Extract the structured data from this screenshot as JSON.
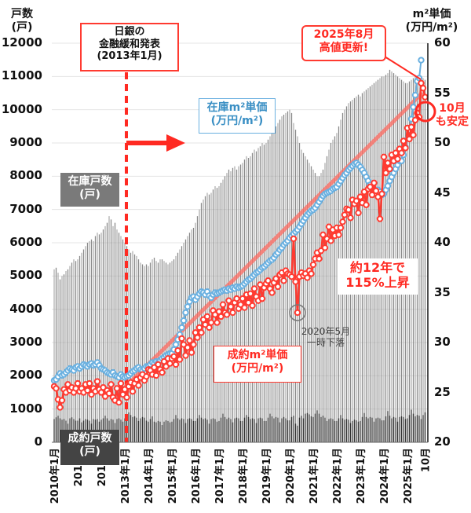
{
  "chart_data": {
    "type": "bar+line",
    "left_axis": {
      "title": "戸数\n(戸)",
      "ylim": [
        0,
        12000
      ],
      "ticks": [
        0,
        1000,
        2000,
        3000,
        4000,
        5000,
        6000,
        7000,
        8000,
        9000,
        10000,
        11000,
        12000
      ]
    },
    "right_axis": {
      "title": "m²単価\n(万円/m²)",
      "ylim": [
        20,
        60
      ],
      "ticks": [
        20,
        25,
        30,
        35,
        40,
        45,
        50,
        55,
        60
      ]
    },
    "x_tick_labels": [
      "2010年1月",
      "2011年",
      "2012年",
      "2013年1月",
      "2014年1月",
      "2015年1月",
      "2016年1月",
      "2017年1月",
      "2018年1月",
      "2019年1月",
      "2020年1月",
      "2021年1月",
      "2022年1月",
      "2023年1月",
      "2024年1月",
      "2025年1月",
      "10月"
    ],
    "x_range": [
      "2010-01",
      "2025-10"
    ],
    "grid": "horizontal",
    "series": [
      {
        "name": "在庫戸数\n(戸)",
        "type": "bar",
        "axis": "left",
        "color": "#9a9a9a",
        "values": [
          5200,
          5250,
          5100,
          4900,
          5000,
          5050,
          5150,
          5200,
          5300,
          5400,
          5500,
          5450,
          5500,
          5600,
          5700,
          5800,
          5900,
          6000,
          6050,
          6100,
          6050,
          6200,
          6300,
          6250,
          6300,
          6400,
          6500,
          6600,
          6800,
          6700,
          6500,
          6600,
          6400,
          6300,
          6200,
          6100,
          6000,
          5900,
          5800,
          5700,
          5750,
          5650,
          5600,
          5500,
          5400,
          5350,
          5300,
          5350,
          5300,
          5400,
          5500,
          5550,
          5450,
          5400,
          5500,
          5500,
          5450,
          5400,
          5350,
          5400,
          5450,
          5500,
          5600,
          5700,
          5800,
          5900,
          6000,
          6100,
          6200,
          6300,
          6400,
          6450,
          6600,
          6800,
          7000,
          7200,
          7300,
          7400,
          7500,
          7450,
          7500,
          7600,
          7700,
          7650,
          7700,
          7800,
          7900,
          8000,
          8100,
          8200,
          8150,
          8250,
          8300,
          8200,
          8300,
          8350,
          8400,
          8500,
          8600,
          8550,
          8600,
          8700,
          8800,
          8750,
          8850,
          8900,
          9000,
          8950,
          9000,
          9100,
          9200,
          9300,
          9400,
          9500,
          9600,
          9700,
          9800,
          9850,
          9900,
          9950,
          10000,
          9900,
          9600,
          9400,
          9200,
          9000,
          8800,
          8700,
          8600,
          8500,
          8400,
          8300,
          8200,
          8100,
          8000,
          8000,
          8100,
          8200,
          8400,
          8600,
          8800,
          9000,
          9100,
          9200,
          9300,
          9500,
          9700,
          9900,
          10000,
          10100,
          10200,
          10250,
          10300,
          10350,
          10400,
          10450,
          10400,
          10500,
          10550,
          10600,
          10650,
          10700,
          10750,
          10800,
          10850,
          10900,
          10950,
          11000,
          11000,
          11050,
          11100,
          11200,
          11150,
          11100,
          11050,
          11000,
          10950,
          10900,
          10850,
          10800,
          10800,
          10850,
          10900,
          10950,
          11000,
          10900,
          10850,
          10900,
          10950,
          10900
        ]
      },
      {
        "name": "成約戸数\n(戸)",
        "type": "bar",
        "axis": "left",
        "color": "#3a3a3a",
        "values": [
          700,
          750,
          800,
          720,
          680,
          700,
          650,
          560,
          720,
          750,
          700,
          650,
          650,
          720,
          600,
          650,
          700,
          680,
          650,
          560,
          700,
          680,
          700,
          620,
          680,
          720,
          800,
          720,
          650,
          700,
          680,
          580,
          700,
          720,
          680,
          620,
          720,
          800,
          900,
          820,
          760,
          780,
          740,
          640,
          720,
          760,
          740,
          650,
          620,
          700,
          780,
          620,
          600,
          640,
          620,
          520,
          620,
          660,
          640,
          600,
          620,
          700,
          820,
          720,
          680,
          720,
          700,
          580,
          700,
          720,
          700,
          640,
          640,
          720,
          820,
          740,
          700,
          720,
          680,
          560,
          700,
          720,
          700,
          620,
          640,
          740,
          860,
          760,
          700,
          740,
          700,
          600,
          720,
          740,
          720,
          640,
          640,
          740,
          820,
          760,
          700,
          720,
          700,
          580,
          720,
          740,
          720,
          640,
          640,
          740,
          860,
          780,
          720,
          760,
          740,
          600,
          720,
          760,
          720,
          660,
          660,
          760,
          800,
          560,
          500,
          740,
          800,
          720,
          860,
          880,
          840,
          780,
          760,
          860,
          960,
          860,
          760,
          800,
          740,
          640,
          700,
          720,
          700,
          640,
          640,
          720,
          820,
          720,
          680,
          700,
          680,
          580,
          640,
          680,
          660,
          620,
          640,
          760,
          880,
          760,
          720,
          760,
          740,
          620,
          720,
          740,
          720,
          660,
          660,
          780,
          940,
          800,
          720,
          760,
          740,
          620,
          760,
          780,
          760,
          700,
          720,
          820,
          980,
          860,
          780,
          820,
          800,
          700,
          820,
          900
        ]
      },
      {
        "name": "在庫m²単価\n(万円/m²)",
        "type": "line",
        "axis": "right",
        "color": "#6ab0e0",
        "values": [
          26.2,
          26.3,
          26.6,
          26.9,
          26.7,
          26.8,
          27.0,
          27.2,
          27.4,
          27.3,
          27.2,
          27.5,
          27.6,
          27.4,
          27.6,
          27.8,
          27.7,
          27.6,
          27.8,
          27.9,
          27.7,
          27.8,
          28.0,
          27.7,
          27.4,
          27.3,
          27.2,
          27.0,
          26.9,
          26.8,
          27.0,
          26.7,
          26.6,
          26.5,
          26.8,
          26.6,
          26.5,
          26.6,
          26.7,
          26.9,
          27.1,
          27.2,
          27.4,
          27.5,
          27.3,
          27.2,
          27.4,
          27.6,
          27.6,
          27.8,
          28.0,
          27.9,
          28.1,
          28.0,
          28.2,
          28.4,
          28.5,
          28.7,
          28.8,
          28.9,
          28.9,
          29.3,
          29.8,
          30.3,
          30.8,
          31.5,
          32.2,
          33.0,
          33.6,
          34.1,
          34.5,
          34.6,
          34.3,
          34.6,
          34.9,
          35.1,
          35.0,
          34.8,
          35.1,
          34.7,
          34.5,
          34.8,
          35.0,
          34.9,
          35.0,
          35.1,
          35.2,
          35.3,
          35.2,
          35.4,
          35.3,
          35.5,
          35.4,
          35.6,
          35.5,
          35.6,
          35.7,
          35.9,
          36.1,
          36.3,
          36.4,
          36.6,
          36.8,
          37.0,
          37.1,
          37.3,
          37.5,
          37.6,
          37.8,
          38.0,
          38.2,
          38.3,
          38.5,
          38.8,
          39.0,
          39.3,
          39.5,
          39.8,
          40.0,
          40.2,
          40.5,
          40.7,
          40.9,
          41.1,
          41.3,
          41.6,
          41.9,
          42.2,
          42.5,
          42.8,
          43.0,
          43.2,
          43.3,
          43.5,
          43.8,
          44.1,
          44.4,
          44.7,
          44.9,
          45.0,
          45.1,
          45.2,
          45.4,
          45.5,
          45.6,
          45.9,
          46.2,
          46.5,
          46.8,
          47.0,
          47.3,
          47.5,
          47.7,
          47.9,
          48.0,
          47.8,
          47.6,
          47.3,
          47.0,
          46.6,
          46.2,
          45.8,
          45.5,
          45.2,
          45.0,
          45.3,
          45.1,
          44.8,
          44.9,
          45.3,
          45.7,
          46.2,
          46.6,
          47.0,
          47.4,
          47.8,
          48.2,
          48.2,
          48.8,
          49.6,
          50.4,
          51.3,
          52.4,
          53.6,
          54.8,
          56.2,
          56.5,
          58.3
        ]
      },
      {
        "name": "成約m²単価\n(万円/m²)",
        "type": "line",
        "axis": "right",
        "color": "#ff3a30",
        "values": [
          25.6,
          25.4,
          24.3,
          23.5,
          24.2,
          25.3,
          25.0,
          25.8,
          25.2,
          25.5,
          25.0,
          25.4,
          25.9,
          25.1,
          25.4,
          25.0,
          25.8,
          25.2,
          25.9,
          24.8,
          25.4,
          25.1,
          26.1,
          25.3,
          25.0,
          25.5,
          24.6,
          25.2,
          24.9,
          25.8,
          24.5,
          24.2,
          25.4,
          24.0,
          25.9,
          24.8,
          25.3,
          24.5,
          25.6,
          26.0,
          25.1,
          25.9,
          26.3,
          25.7,
          26.5,
          26.8,
          26.2,
          26.6,
          27.3,
          27.2,
          26.8,
          27.5,
          26.7,
          27.8,
          27.3,
          27.0,
          28.1,
          27.6,
          28.4,
          27.9,
          28.4,
          28.6,
          27.8,
          29.2,
          28.3,
          30.4,
          29.8,
          28.7,
          29.5,
          30.2,
          29.0,
          29.8,
          31.0,
          30.5,
          31.5,
          31.0,
          32.3,
          31.8,
          32.6,
          31.5,
          32.0,
          33.2,
          32.8,
          32.0,
          33.1,
          32.6,
          33.8,
          33.0,
          32.8,
          34.2,
          33.6,
          33.0,
          34.0,
          34.4,
          33.4,
          33.8,
          34.4,
          33.5,
          34.8,
          34.0,
          34.9,
          33.7,
          35.4,
          34.6,
          34.2,
          35.8,
          34.4,
          35.5,
          35.9,
          36.2,
          35.4,
          35.0,
          36.0,
          36.4,
          35.6,
          36.8,
          37.0,
          36.2,
          37.2,
          36.9,
          36.8,
          36.6,
          40.4,
          36.1,
          33.0,
          36.6,
          37.0,
          36.7,
          36.9,
          36.5,
          37.2,
          36.9,
          37.8,
          38.4,
          39.0,
          38.4,
          39.2,
          40.8,
          39.5,
          40.4,
          41.6,
          40.2,
          41.3,
          40.7,
          41.5,
          40.8,
          41.5,
          42.1,
          42.8,
          43.4,
          43.3,
          42.5,
          44.3,
          43.9,
          44.2,
          43.0,
          44.6,
          44.0,
          45.1,
          43.8,
          45.4,
          45.6,
          44.8,
          46.0,
          45.2,
          44.6,
          42.4,
          44.9,
          48.6,
          47.0,
          48.0,
          47.4,
          48.8,
          48.2,
          49.0,
          48.4,
          49.4,
          49.0,
          50.2,
          49.5,
          51.5,
          50.4,
          51.6,
          50.8,
          52.3,
          53.0,
          52.6,
          56.0,
          55.5,
          54.6
        ]
      }
    ],
    "trend_line": {
      "from": [
        "2013-01",
        25.5
      ],
      "to": [
        "2025-08",
        54.9
      ],
      "color": "#ff6a60"
    },
    "annotations": {
      "boj": "日銀の\n金融緩和発表\n(2013年1月)",
      "inventory_price": "在庫m²単価\n(万円/m²)",
      "contract_price": "成約m²単価\n(万円/m²)",
      "inventory_units": "在庫戸数\n(戸)",
      "contract_units": "成約戸数\n(戸)",
      "rise": "約12年で\n115%上昇",
      "covid": "2020年5月\n一時下落",
      "high": "2025年8月\n高値更新!",
      "stable": "10月\nも安定"
    }
  }
}
